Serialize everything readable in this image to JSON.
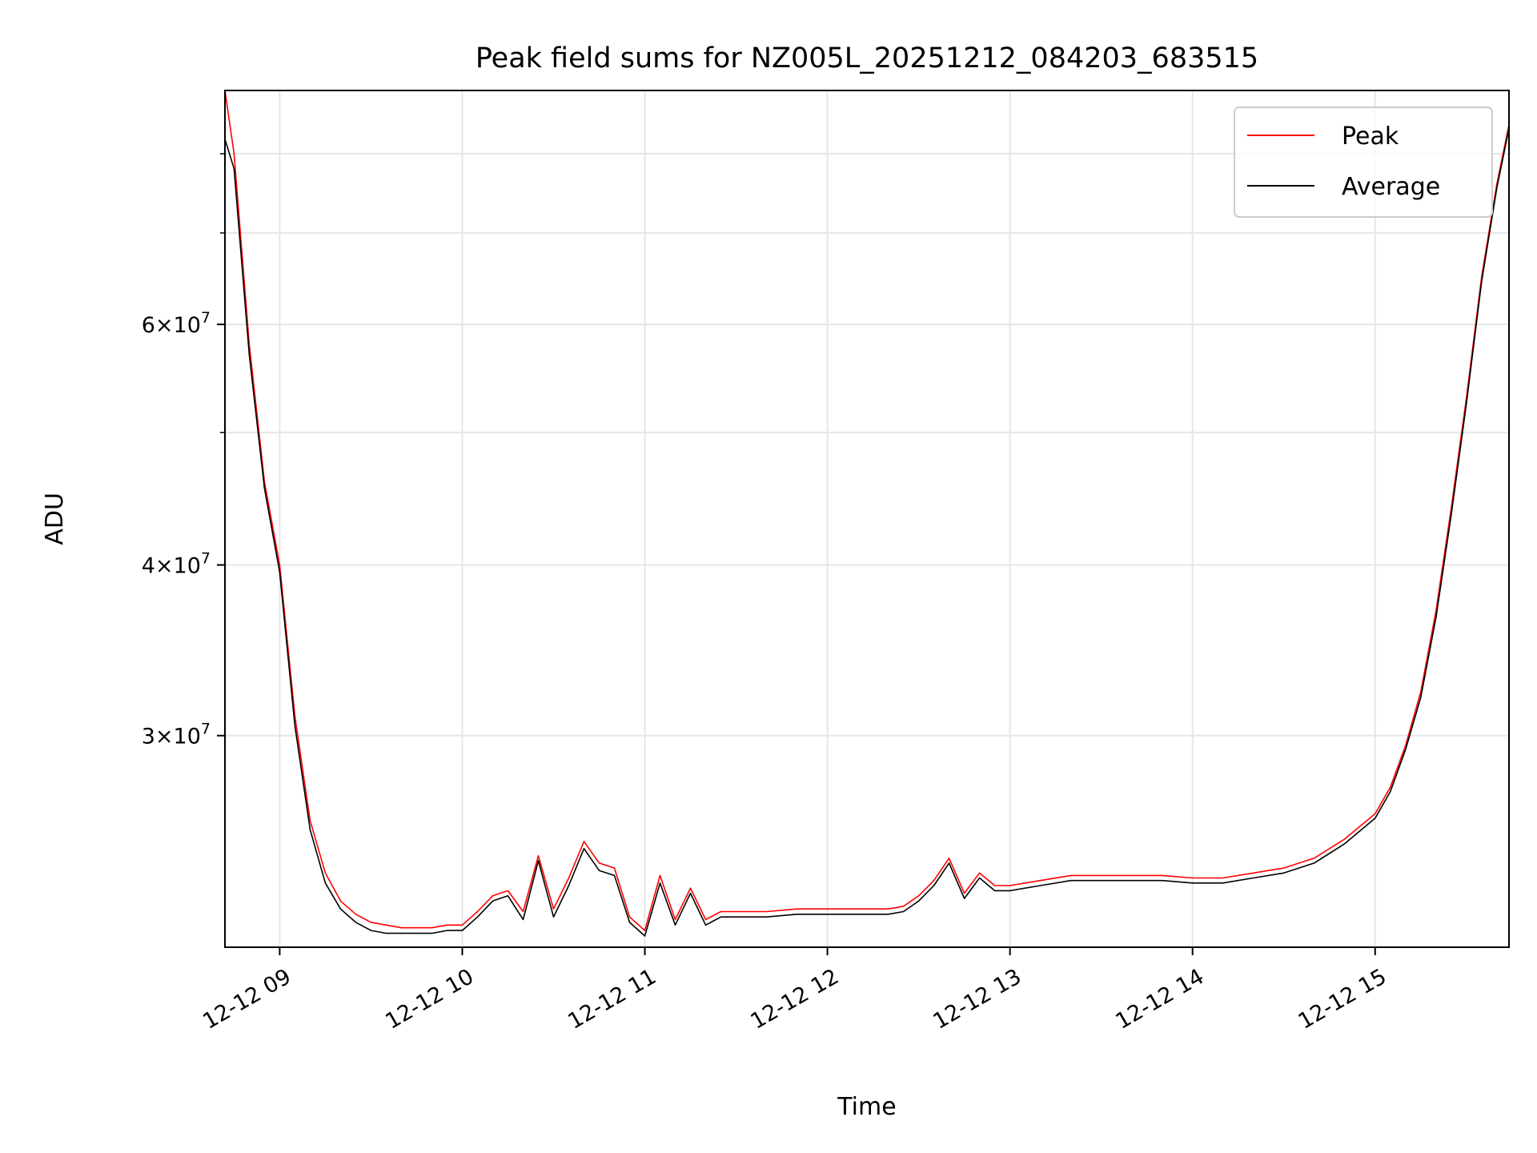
{
  "chart_data": {
    "type": "line",
    "title": "Peak field sums for NZ005L_20251212_084203_683515",
    "xlabel": "Time",
    "ylabel": "ADU",
    "yscale": "log",
    "x_is_time": true,
    "xlim": [
      "2025-12-12 08:42",
      "2025-12-12 15:44"
    ],
    "ylim": [
      21000000,
      89000000
    ],
    "x_ticks": [
      {
        "x": "2025-12-12 09:00",
        "label": "12-12 09"
      },
      {
        "x": "2025-12-12 10:00",
        "label": "12-12 10"
      },
      {
        "x": "2025-12-12 11:00",
        "label": "12-12 11"
      },
      {
        "x": "2025-12-12 12:00",
        "label": "12-12 12"
      },
      {
        "x": "2025-12-12 13:00",
        "label": "12-12 13"
      },
      {
        "x": "2025-12-12 14:00",
        "label": "12-12 14"
      },
      {
        "x": "2025-12-12 15:00",
        "label": "12-12 15"
      }
    ],
    "y_ticks_major": [
      {
        "value": 30000000,
        "mant": "3",
        "exp": "7"
      },
      {
        "value": 40000000,
        "mant": "4",
        "exp": "7"
      },
      {
        "value": 60000000,
        "mant": "6",
        "exp": "7"
      }
    ],
    "y_ticks_minor": [
      50000000,
      70000000,
      80000000
    ],
    "grid": true,
    "legend_position": "top-right",
    "series": [
      {
        "name": "Peak",
        "color": "#ff0000",
        "x": [
          "2025-12-12 08:42",
          "2025-12-12 08:45",
          "2025-12-12 08:50",
          "2025-12-12 08:55",
          "2025-12-12 09:00",
          "2025-12-12 09:05",
          "2025-12-12 09:10",
          "2025-12-12 09:15",
          "2025-12-12 09:20",
          "2025-12-12 09:25",
          "2025-12-12 09:30",
          "2025-12-12 09:35",
          "2025-12-12 09:40",
          "2025-12-12 09:45",
          "2025-12-12 09:50",
          "2025-12-12 09:55",
          "2025-12-12 10:00",
          "2025-12-12 10:05",
          "2025-12-12 10:10",
          "2025-12-12 10:15",
          "2025-12-12 10:20",
          "2025-12-12 10:25",
          "2025-12-12 10:30",
          "2025-12-12 10:35",
          "2025-12-12 10:40",
          "2025-12-12 10:45",
          "2025-12-12 10:50",
          "2025-12-12 10:55",
          "2025-12-12 11:00",
          "2025-12-12 11:05",
          "2025-12-12 11:10",
          "2025-12-12 11:15",
          "2025-12-12 11:20",
          "2025-12-12 11:25",
          "2025-12-12 11:30",
          "2025-12-12 11:40",
          "2025-12-12 11:50",
          "2025-12-12 12:00",
          "2025-12-12 12:10",
          "2025-12-12 12:20",
          "2025-12-12 12:25",
          "2025-12-12 12:30",
          "2025-12-12 12:35",
          "2025-12-12 12:40",
          "2025-12-12 12:45",
          "2025-12-12 12:50",
          "2025-12-12 12:55",
          "2025-12-12 13:00",
          "2025-12-12 13:10",
          "2025-12-12 13:20",
          "2025-12-12 13:30",
          "2025-12-12 13:40",
          "2025-12-12 13:50",
          "2025-12-12 14:00",
          "2025-12-12 14:10",
          "2025-12-12 14:20",
          "2025-12-12 14:30",
          "2025-12-12 14:40",
          "2025-12-12 14:50",
          "2025-12-12 15:00",
          "2025-12-12 15:05",
          "2025-12-12 15:10",
          "2025-12-12 15:15",
          "2025-12-12 15:20",
          "2025-12-12 15:25",
          "2025-12-12 15:30",
          "2025-12-12 15:35",
          "2025-12-12 15:40",
          "2025-12-12 15:44"
        ],
        "y": [
          89000000,
          80000000,
          58000000,
          46000000,
          40000000,
          31000000,
          26000000,
          23800000,
          22700000,
          22200000,
          21900000,
          21800000,
          21700000,
          21700000,
          21700000,
          21800000,
          21800000,
          22300000,
          22900000,
          23100000,
          22300000,
          24500000,
          22400000,
          23600000,
          25100000,
          24200000,
          24000000,
          22100000,
          21600000,
          23700000,
          22000000,
          23200000,
          22000000,
          22300000,
          22300000,
          22300000,
          22400000,
          22400000,
          22400000,
          22400000,
          22500000,
          22900000,
          23500000,
          24400000,
          23000000,
          23800000,
          23300000,
          23300000,
          23500000,
          23700000,
          23700000,
          23700000,
          23700000,
          23600000,
          23600000,
          23800000,
          24000000,
          24400000,
          25200000,
          26300000,
          27500000,
          29500000,
          32300000,
          37000000,
          44000000,
          53000000,
          65000000,
          76000000,
          84000000
        ]
      },
      {
        "name": "Average",
        "color": "#000000",
        "x": [
          "2025-12-12 08:42",
          "2025-12-12 08:45",
          "2025-12-12 08:50",
          "2025-12-12 08:55",
          "2025-12-12 09:00",
          "2025-12-12 09:05",
          "2025-12-12 09:10",
          "2025-12-12 09:15",
          "2025-12-12 09:20",
          "2025-12-12 09:25",
          "2025-12-12 09:30",
          "2025-12-12 09:35",
          "2025-12-12 09:40",
          "2025-12-12 09:45",
          "2025-12-12 09:50",
          "2025-12-12 09:55",
          "2025-12-12 10:00",
          "2025-12-12 10:05",
          "2025-12-12 10:10",
          "2025-12-12 10:15",
          "2025-12-12 10:20",
          "2025-12-12 10:25",
          "2025-12-12 10:30",
          "2025-12-12 10:35",
          "2025-12-12 10:40",
          "2025-12-12 10:45",
          "2025-12-12 10:50",
          "2025-12-12 10:55",
          "2025-12-12 11:00",
          "2025-12-12 11:05",
          "2025-12-12 11:10",
          "2025-12-12 11:15",
          "2025-12-12 11:20",
          "2025-12-12 11:25",
          "2025-12-12 11:30",
          "2025-12-12 11:40",
          "2025-12-12 11:50",
          "2025-12-12 12:00",
          "2025-12-12 12:10",
          "2025-12-12 12:20",
          "2025-12-12 12:25",
          "2025-12-12 12:30",
          "2025-12-12 12:35",
          "2025-12-12 12:40",
          "2025-12-12 12:45",
          "2025-12-12 12:50",
          "2025-12-12 12:55",
          "2025-12-12 13:00",
          "2025-12-12 13:10",
          "2025-12-12 13:20",
          "2025-12-12 13:30",
          "2025-12-12 13:40",
          "2025-12-12 13:50",
          "2025-12-12 14:00",
          "2025-12-12 14:10",
          "2025-12-12 14:20",
          "2025-12-12 14:30",
          "2025-12-12 14:40",
          "2025-12-12 14:50",
          "2025-12-12 15:00",
          "2025-12-12 15:05",
          "2025-12-12 15:10",
          "2025-12-12 15:15",
          "2025-12-12 15:20",
          "2025-12-12 15:25",
          "2025-12-12 15:30",
          "2025-12-12 15:35",
          "2025-12-12 15:40",
          "2025-12-12 15:44"
        ],
        "y": [
          82000000,
          78000000,
          57000000,
          45500000,
          39500000,
          30500000,
          25600000,
          23400000,
          22400000,
          21900000,
          21600000,
          21500000,
          21500000,
          21500000,
          21500000,
          21600000,
          21600000,
          22100000,
          22700000,
          22900000,
          22000000,
          24300000,
          22100000,
          23300000,
          24800000,
          23900000,
          23700000,
          21900000,
          21400000,
          23400000,
          21800000,
          23000000,
          21800000,
          22100000,
          22100000,
          22100000,
          22200000,
          22200000,
          22200000,
          22200000,
          22300000,
          22700000,
          23300000,
          24200000,
          22800000,
          23600000,
          23100000,
          23100000,
          23300000,
          23500000,
          23500000,
          23500000,
          23500000,
          23400000,
          23400000,
          23600000,
          23800000,
          24200000,
          25000000,
          26100000,
          27300000,
          29300000,
          32000000,
          36600000,
          43500000,
          52500000,
          64500000,
          75500000,
          83500000
        ]
      }
    ]
  }
}
